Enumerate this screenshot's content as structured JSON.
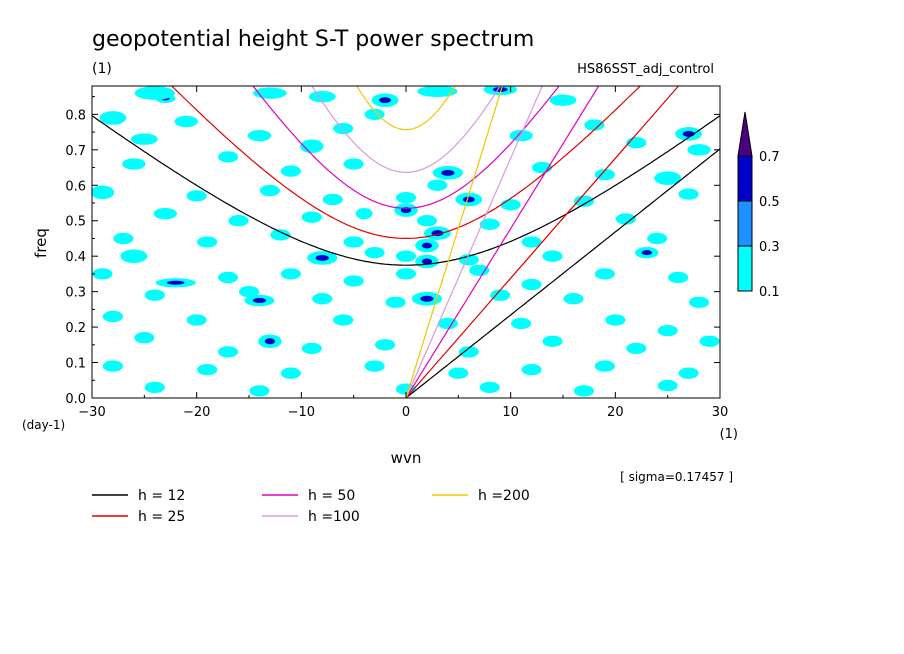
{
  "chart_data": {
    "type": "contour",
    "title": "geopotential height S-T power spectrum",
    "subtitle_left": "(1)",
    "subtitle_right": "HS86SST_adj_control",
    "xlabel": "wvn",
    "ylabel": "freq",
    "x_unit": "(1)",
    "y_unit": "(day-1)",
    "xlim": [
      -30,
      30
    ],
    "ylim": [
      0.0,
      0.88
    ],
    "x_ticks": [
      -30,
      -20,
      -10,
      0,
      10,
      20,
      30
    ],
    "x_tick_labels": [
      "−30",
      "−20",
      "−10",
      "0",
      "10",
      "20",
      "30"
    ],
    "y_ticks": [
      0.0,
      0.1,
      0.2,
      0.3,
      0.4,
      0.5,
      0.6,
      0.7,
      0.8
    ],
    "y_tick_labels": [
      "0.0",
      "0.1",
      "0.2",
      "0.3",
      "0.4",
      "0.5",
      "0.6",
      "0.7",
      "0.8"
    ],
    "sigma_note": "[ sigma=0.17457 ]",
    "colorbar": {
      "levels": [
        "0.1",
        "0.3",
        "0.5",
        "0.7"
      ],
      "colors": [
        "#00ffff",
        "#1e90ff",
        "#0000cd",
        "#4b0082"
      ]
    },
    "dispersion_curves": [
      {
        "name": "h = 12",
        "color": "#000000",
        "mode": "rossby_n1",
        "h": 12
      },
      {
        "name": "h = 25",
        "color": "#e00000",
        "mode": "rossby_n1",
        "h": 25
      },
      {
        "name": "h = 50",
        "color": "#e000c0",
        "mode": "rossby_n1",
        "h": 50
      },
      {
        "name": "h =100",
        "color": "#dc98dc",
        "mode": "rossby_n1",
        "h": 100
      },
      {
        "name": "h =200",
        "color": "#f0c800",
        "mode": "rossby_n1",
        "h": 200
      },
      {
        "name": "h = 12",
        "color": "#000000",
        "mode": "kelvin",
        "h": 12
      },
      {
        "name": "h = 25",
        "color": "#e00000",
        "mode": "kelvin",
        "h": 25
      },
      {
        "name": "h = 50",
        "color": "#e000c0",
        "mode": "kelvin",
        "h": 50
      },
      {
        "name": "h =100",
        "color": "#dc98dc",
        "mode": "kelvin",
        "h": 100
      },
      {
        "name": "h =200",
        "color": "#f0c800",
        "mode": "kelvin",
        "h": 200
      }
    ],
    "legend": [
      {
        "name": "h = 12",
        "color": "#000000"
      },
      {
        "name": "h = 50",
        "color": "#e000c0"
      },
      {
        "name": "h =200",
        "color": "#f0c800"
      },
      {
        "name": "h = 25",
        "color": "#e00000"
      },
      {
        "name": "h =100",
        "color": "#dc98dc"
      }
    ],
    "power_blobs": [
      [
        -23,
        0.845,
        0.6,
        0.008,
        0.5
      ],
      [
        -24,
        0.86,
        1.2,
        0.012,
        0.2
      ],
      [
        -13,
        0.86,
        1.0,
        0.01,
        0.2
      ],
      [
        -8,
        0.85,
        0.8,
        0.01,
        0.2
      ],
      [
        -2,
        0.84,
        0.8,
        0.012,
        0.5
      ],
      [
        3,
        0.865,
        1.2,
        0.01,
        0.2
      ],
      [
        9,
        0.87,
        1.0,
        0.01,
        0.5
      ],
      [
        15,
        0.84,
        0.8,
        0.01,
        0.2
      ],
      [
        -28,
        0.79,
        0.8,
        0.012,
        0.2
      ],
      [
        -21,
        0.78,
        0.7,
        0.01,
        0.2
      ],
      [
        -25,
        0.73,
        0.8,
        0.01,
        0.2
      ],
      [
        -14,
        0.74,
        0.7,
        0.01,
        0.2
      ],
      [
        -9,
        0.71,
        0.7,
        0.012,
        0.2
      ],
      [
        -6,
        0.76,
        0.6,
        0.01,
        0.2
      ],
      [
        -3,
        0.8,
        0.6,
        0.01,
        0.2
      ],
      [
        11,
        0.74,
        0.7,
        0.01,
        0.2
      ],
      [
        18,
        0.77,
        0.6,
        0.01,
        0.2
      ],
      [
        27,
        0.745,
        0.8,
        0.012,
        0.5
      ],
      [
        28,
        0.7,
        0.7,
        0.01,
        0.2
      ],
      [
        22,
        0.72,
        0.6,
        0.01,
        0.2
      ],
      [
        -26,
        0.66,
        0.7,
        0.01,
        0.2
      ],
      [
        -17,
        0.68,
        0.6,
        0.01,
        0.2
      ],
      [
        -11,
        0.64,
        0.6,
        0.01,
        0.2
      ],
      [
        -5,
        0.66,
        0.6,
        0.01,
        0.2
      ],
      [
        4,
        0.635,
        0.9,
        0.012,
        0.5
      ],
      [
        3,
        0.6,
        0.6,
        0.01,
        0.2
      ],
      [
        13,
        0.65,
        0.6,
        0.01,
        0.2
      ],
      [
        19,
        0.63,
        0.6,
        0.01,
        0.2
      ],
      [
        25,
        0.62,
        0.8,
        0.012,
        0.2
      ],
      [
        -29,
        0.58,
        0.7,
        0.012,
        0.2
      ],
      [
        -20,
        0.57,
        0.6,
        0.01,
        0.2
      ],
      [
        -13,
        0.585,
        0.6,
        0.01,
        0.2
      ],
      [
        -7,
        0.56,
        0.6,
        0.01,
        0.2
      ],
      [
        0,
        0.565,
        0.6,
        0.01,
        0.2
      ],
      [
        6,
        0.56,
        0.8,
        0.012,
        0.5
      ],
      [
        10,
        0.545,
        0.6,
        0.01,
        0.2
      ],
      [
        17,
        0.555,
        0.6,
        0.01,
        0.2
      ],
      [
        27,
        0.575,
        0.6,
        0.01,
        0.2
      ],
      [
        -23,
        0.52,
        0.7,
        0.01,
        0.2
      ],
      [
        -16,
        0.5,
        0.6,
        0.01,
        0.2
      ],
      [
        -9,
        0.51,
        0.6,
        0.01,
        0.2
      ],
      [
        -4,
        0.52,
        0.5,
        0.01,
        0.2
      ],
      [
        0,
        0.53,
        0.7,
        0.012,
        0.5
      ],
      [
        2,
        0.5,
        0.6,
        0.01,
        0.2
      ],
      [
        8,
        0.49,
        0.6,
        0.01,
        0.2
      ],
      [
        21,
        0.505,
        0.6,
        0.01,
        0.2
      ],
      [
        -27,
        0.45,
        0.6,
        0.01,
        0.2
      ],
      [
        -19,
        0.44,
        0.6,
        0.01,
        0.2
      ],
      [
        -12,
        0.46,
        0.6,
        0.01,
        0.2
      ],
      [
        -5,
        0.44,
        0.6,
        0.01,
        0.2
      ],
      [
        3,
        0.465,
        0.8,
        0.012,
        0.5
      ],
      [
        2,
        0.43,
        0.7,
        0.012,
        0.5
      ],
      [
        12,
        0.44,
        0.6,
        0.01,
        0.2
      ],
      [
        24,
        0.45,
        0.6,
        0.01,
        0.2
      ],
      [
        -26,
        0.4,
        0.8,
        0.012,
        0.2
      ],
      [
        -8,
        0.395,
        0.9,
        0.012,
        0.5
      ],
      [
        -3,
        0.41,
        0.6,
        0.01,
        0.2
      ],
      [
        0,
        0.4,
        0.6,
        0.01,
        0.2
      ],
      [
        2,
        0.385,
        0.7,
        0.012,
        0.5
      ],
      [
        6,
        0.39,
        0.6,
        0.01,
        0.2
      ],
      [
        14,
        0.4,
        0.6,
        0.01,
        0.2
      ],
      [
        23,
        0.41,
        0.7,
        0.01,
        0.5
      ],
      [
        -29,
        0.35,
        0.6,
        0.01,
        0.2
      ],
      [
        -22,
        0.325,
        1.2,
        0.008,
        0.5
      ],
      [
        -17,
        0.34,
        0.6,
        0.01,
        0.2
      ],
      [
        -11,
        0.35,
        0.6,
        0.01,
        0.2
      ],
      [
        -5,
        0.33,
        0.6,
        0.01,
        0.2
      ],
      [
        0,
        0.35,
        0.6,
        0.01,
        0.2
      ],
      [
        7,
        0.36,
        0.6,
        0.01,
        0.2
      ],
      [
        12,
        0.32,
        0.6,
        0.01,
        0.2
      ],
      [
        19,
        0.35,
        0.6,
        0.01,
        0.2
      ],
      [
        26,
        0.34,
        0.6,
        0.01,
        0.2
      ],
      [
        -24,
        0.29,
        0.6,
        0.01,
        0.2
      ],
      [
        -15,
        0.3,
        0.6,
        0.01,
        0.2
      ],
      [
        -14,
        0.275,
        0.9,
        0.01,
        0.5
      ],
      [
        -8,
        0.28,
        0.6,
        0.01,
        0.2
      ],
      [
        -1,
        0.27,
        0.6,
        0.01,
        0.2
      ],
      [
        2,
        0.28,
        0.9,
        0.012,
        0.5
      ],
      [
        9,
        0.29,
        0.6,
        0.01,
        0.2
      ],
      [
        16,
        0.28,
        0.6,
        0.01,
        0.2
      ],
      [
        28,
        0.27,
        0.6,
        0.01,
        0.2
      ],
      [
        -28,
        0.23,
        0.6,
        0.01,
        0.2
      ],
      [
        -20,
        0.22,
        0.6,
        0.01,
        0.2
      ],
      [
        -13,
        0.16,
        0.7,
        0.012,
        0.5
      ],
      [
        -6,
        0.22,
        0.6,
        0.01,
        0.2
      ],
      [
        4,
        0.21,
        0.6,
        0.01,
        0.2
      ],
      [
        11,
        0.21,
        0.6,
        0.01,
        0.2
      ],
      [
        20,
        0.22,
        0.6,
        0.01,
        0.2
      ],
      [
        25,
        0.19,
        0.6,
        0.01,
        0.2
      ],
      [
        -25,
        0.17,
        0.6,
        0.01,
        0.2
      ],
      [
        -17,
        0.13,
        0.6,
        0.01,
        0.2
      ],
      [
        -9,
        0.14,
        0.6,
        0.01,
        0.2
      ],
      [
        -2,
        0.15,
        0.6,
        0.01,
        0.2
      ],
      [
        6,
        0.13,
        0.6,
        0.01,
        0.2
      ],
      [
        14,
        0.16,
        0.6,
        0.01,
        0.2
      ],
      [
        22,
        0.14,
        0.6,
        0.01,
        0.2
      ],
      [
        29,
        0.16,
        0.6,
        0.01,
        0.2
      ],
      [
        -28,
        0.09,
        0.6,
        0.01,
        0.2
      ],
      [
        -19,
        0.08,
        0.6,
        0.01,
        0.2
      ],
      [
        -11,
        0.07,
        0.6,
        0.01,
        0.2
      ],
      [
        -3,
        0.09,
        0.6,
        0.01,
        0.2
      ],
      [
        5,
        0.07,
        0.6,
        0.01,
        0.2
      ],
      [
        12,
        0.08,
        0.6,
        0.01,
        0.2
      ],
      [
        19,
        0.09,
        0.6,
        0.01,
        0.2
      ],
      [
        27,
        0.07,
        0.6,
        0.01,
        0.2
      ],
      [
        -24,
        0.03,
        0.6,
        0.01,
        0.2
      ],
      [
        -14,
        0.02,
        0.6,
        0.01,
        0.2
      ],
      [
        0,
        0.025,
        0.6,
        0.01,
        0.2
      ],
      [
        8,
        0.03,
        0.6,
        0.01,
        0.2
      ],
      [
        17,
        0.02,
        0.6,
        0.01,
        0.2
      ],
      [
        25,
        0.035,
        0.6,
        0.01,
        0.2
      ]
    ]
  }
}
